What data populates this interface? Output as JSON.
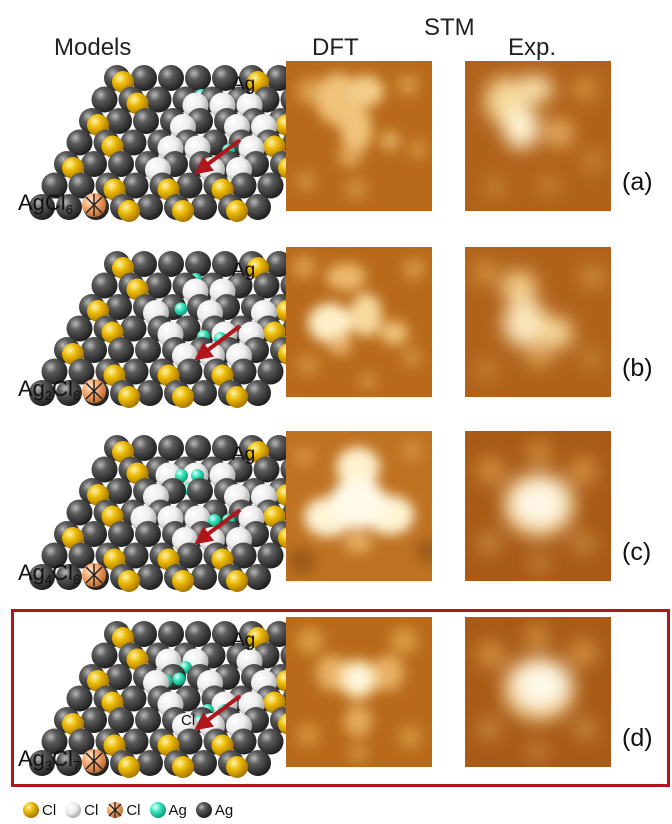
{
  "headers": {
    "models": "Models",
    "dft": "DFT",
    "stm": "STM",
    "exp": "Exp."
  },
  "panels": [
    {
      "id": "a",
      "label": "(a)",
      "formula": [
        [
          "Ag",
          ""
        ],
        [
          "Cl",
          "6"
        ]
      ],
      "arrow_label": "Ag"
    },
    {
      "id": "b",
      "label": "(b)",
      "formula": [
        [
          "Ag",
          "2"
        ],
        [
          "Cl",
          "6"
        ]
      ],
      "arrow_label": "Ag"
    },
    {
      "id": "c",
      "label": "(c)",
      "formula": [
        [
          "Ag",
          "4"
        ],
        [
          "Cl",
          "6"
        ]
      ],
      "arrow_label": "Ag"
    },
    {
      "id": "d",
      "label": "(d)",
      "formula": [
        [
          "Ag",
          "3"
        ],
        [
          "Cl",
          "7"
        ]
      ],
      "arrow_label": "Ag",
      "atom_label": "Cl"
    }
  ],
  "legend": [
    {
      "icon": "yellow-sphere-icon",
      "text": "Cl"
    },
    {
      "icon": "white-sphere-icon",
      "text": "Cl"
    },
    {
      "icon": "crossed-sphere-icon",
      "text": "Cl"
    },
    {
      "icon": "cyan-sphere-icon",
      "text": "Ag"
    },
    {
      "icon": "dark-sphere-icon",
      "text": "Ag"
    }
  ],
  "colors": {
    "arrow": "#b0171c",
    "highlight_box": "#b0171c",
    "cl_yellow": "#e6b800",
    "cl_white": "#f2f2f2",
    "ag_cyan": "#34e0b8",
    "ag_dark": "#3a3a3a",
    "cl_crossed": "#f2a56b"
  }
}
